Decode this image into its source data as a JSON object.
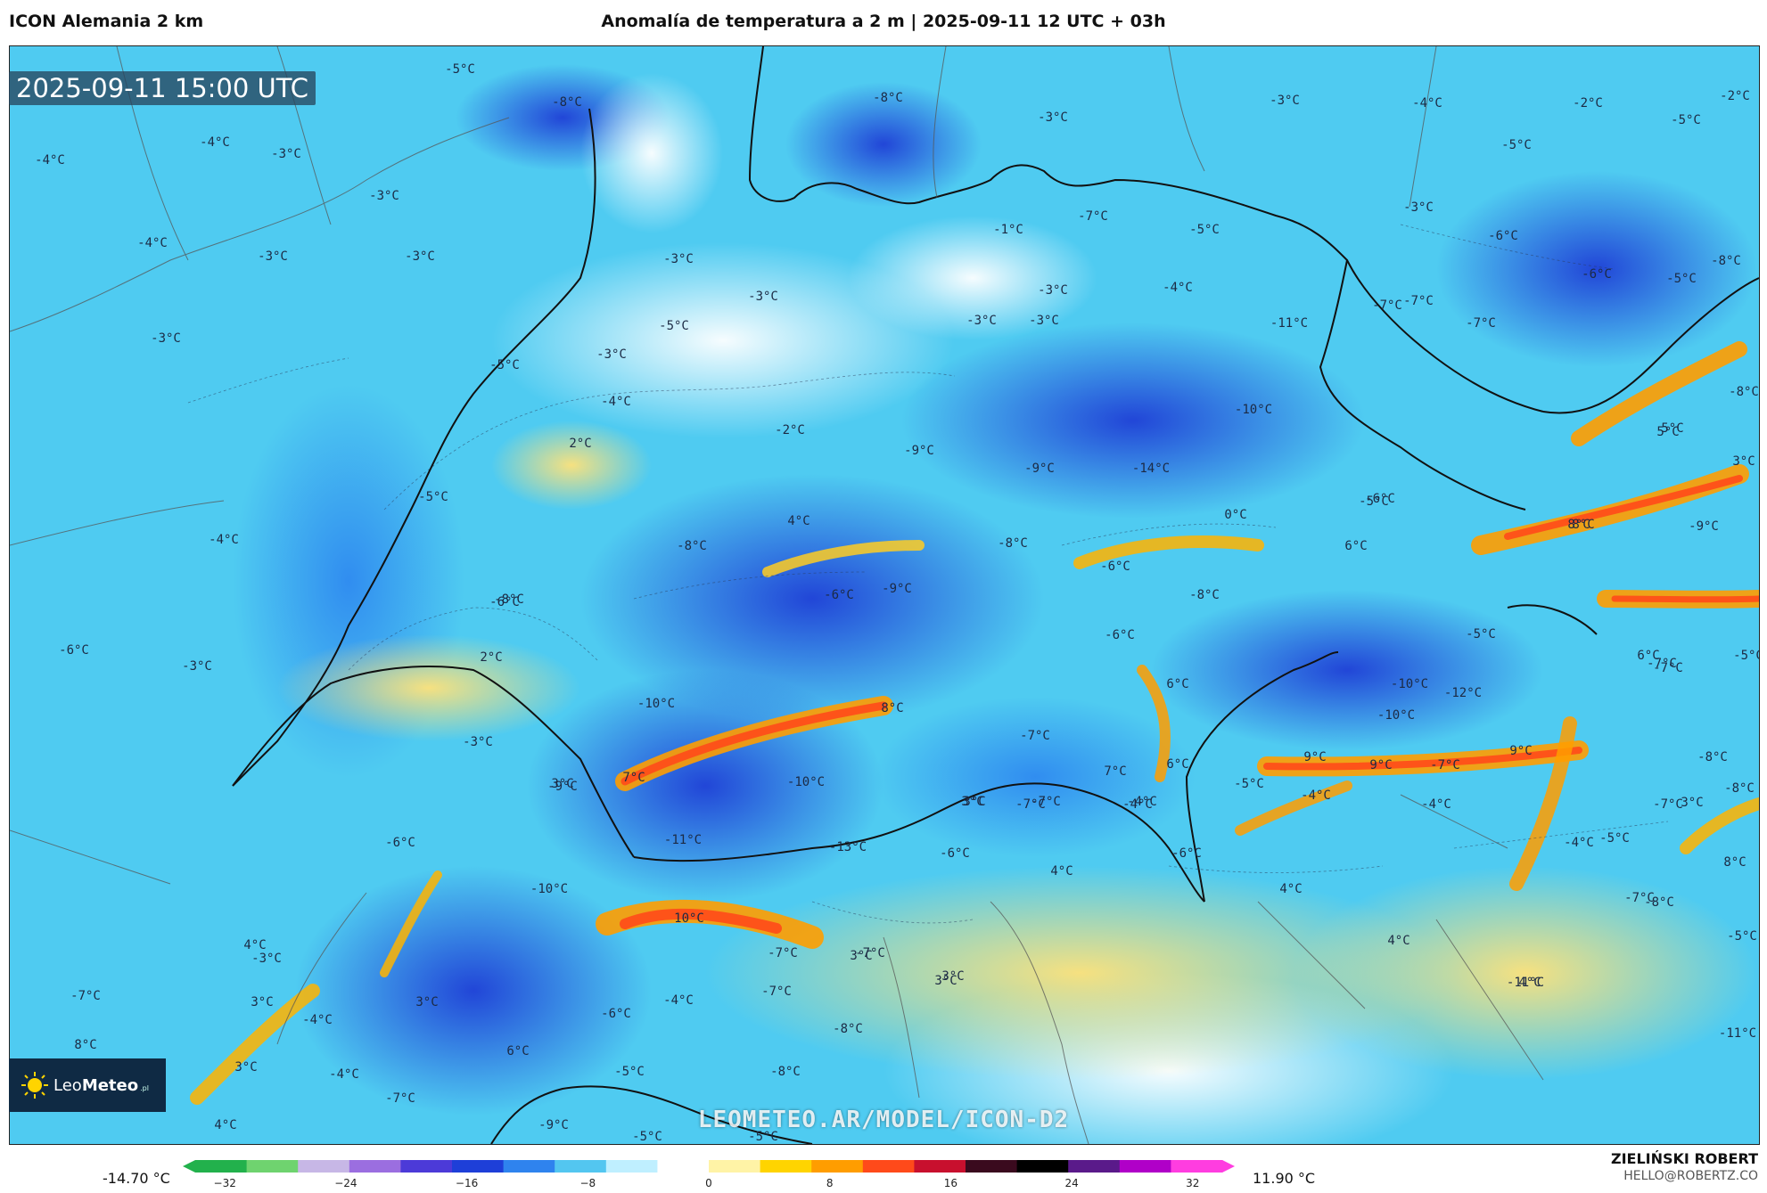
{
  "header": {
    "model": "ICON Alemania 2 km",
    "title": "Anomalía de temperatura a 2 m | 2025-09-11 12 UTC + 03h"
  },
  "map": {
    "timestamp": "2025-09-11 15:00 UTC",
    "watermark": "LEOMETEO.AR/MODEL/ICON-D2",
    "logo_brand_light": "Leo",
    "logo_brand_bold": "Meteo",
    "logo_suffix": ".pl",
    "labels": [
      "-5°C",
      "-8°C",
      "-8°C",
      "-4°C",
      "-3°C",
      "-4°C",
      "-3°C",
      "-4°C",
      "-3°C",
      "-3°C",
      "-3°C",
      "-3°C",
      "-3°C",
      "-4°C",
      "-5°C",
      "-5°C",
      "-3°C",
      "-2°C",
      "-2°C",
      "-3°C",
      "-3°C",
      "-3°C",
      "-5°C",
      "-6°C",
      "-5°C",
      "-6°C",
      "-4°C",
      "-5°C",
      "-7°C",
      "-1°C",
      "-3°C",
      "-3°C",
      "-11°C",
      "-7°C",
      "-7°C",
      "-8°C",
      "-10°C",
      "-14°C",
      "-9°C",
      "-9°C",
      "2°C",
      "-2°C",
      "-5°C",
      "-4°C",
      "-7°C",
      "-3°C",
      "4°C",
      "-8°C",
      "-8°C",
      "0°C",
      "-6°C",
      "-9°C",
      "-6°C",
      "-8°C",
      "6°C",
      "-5°C",
      "8°C",
      "5°C",
      "3°C",
      "-4°C",
      "2°C",
      "-5°C",
      "-9°C",
      "-8°C",
      "-10°C",
      "-7°C",
      "-12°C",
      "-10°C",
      "-5°C",
      "6°C",
      "-6°C",
      "-7°C",
      "-5°C",
      "5°C",
      "8°C",
      "8°C",
      "-6°C",
      "6°C",
      "-7°C",
      "3°C",
      "9°C",
      "9°C",
      "-7°C",
      "9°C",
      "7°C",
      "6°C",
      "-7°C",
      "-4°C",
      "-5°C",
      "-4°C",
      "-9°C",
      "-10°C",
      "-10°C",
      "7°C",
      "-7°C",
      "3°C",
      "-11°C",
      "-13°C",
      "-6°C",
      "4°C",
      "-6°C",
      "-6°C",
      "-4°C",
      "-8°C",
      "4°C",
      "-7°C",
      "-5°C",
      "3°C",
      "-4°C",
      "-4°C",
      "-10°C",
      "10°C",
      "-7°C",
      "4°C",
      "4°C",
      "3°C",
      "8°C",
      "-7°C",
      "-8°C",
      "-5°C",
      "-8°C",
      "-7°C",
      "-6°C",
      "3°C",
      "-4°C",
      "-7°C",
      "3°C",
      "4°C",
      "3°C",
      "3°C",
      "-4°C",
      "-8°C",
      "-11°C",
      "-11°C",
      "-7°C",
      "3°C",
      "-4°C",
      "6°C",
      "-5°C",
      "-8°C",
      "8°C",
      "4°C",
      "-9°C",
      "-7°C",
      "-5°C",
      "-5°C",
      "3°C",
      "-3°C",
      "-3°C",
      "-3°C",
      "-6°C",
      "-8°C",
      "-6°C"
    ]
  },
  "scale": {
    "min_label": "-14.70 °C",
    "max_label": "11.90 °C",
    "ticks": [
      "−32",
      "−24",
      "−16",
      "−8",
      "0",
      "8",
      "16",
      "24",
      "32"
    ],
    "stops": [
      "#22b14c",
      "#6fd36f",
      "#c7b7e6",
      "#9b6ee0",
      "#4c3ad8",
      "#1e3fd8",
      "#2f83ee",
      "#53c6f0",
      "#bfefff",
      "#ffffff",
      "#fff3a6",
      "#ffd400",
      "#ff9d00",
      "#ff4a1a",
      "#c8102e",
      "#3a0a1e",
      "#000000",
      "#5a1a8a",
      "#b000c8",
      "#ff3de0"
    ]
  },
  "author": {
    "name": "ZIELIŃSKI ROBERT",
    "email": "HELLO@ROBERTZ.CO"
  }
}
